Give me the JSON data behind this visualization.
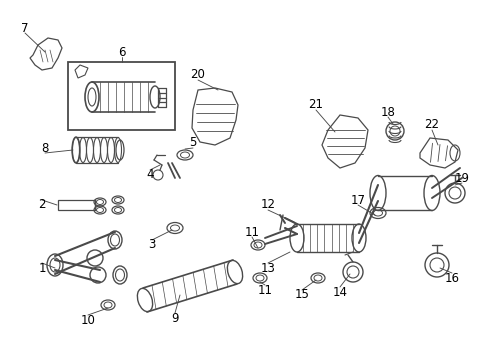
{
  "bg_color": "#ffffff",
  "line_color": "#4a4a4a",
  "label_color": "#000000",
  "fig_w": 4.89,
  "fig_h": 3.6,
  "dpi": 100
}
